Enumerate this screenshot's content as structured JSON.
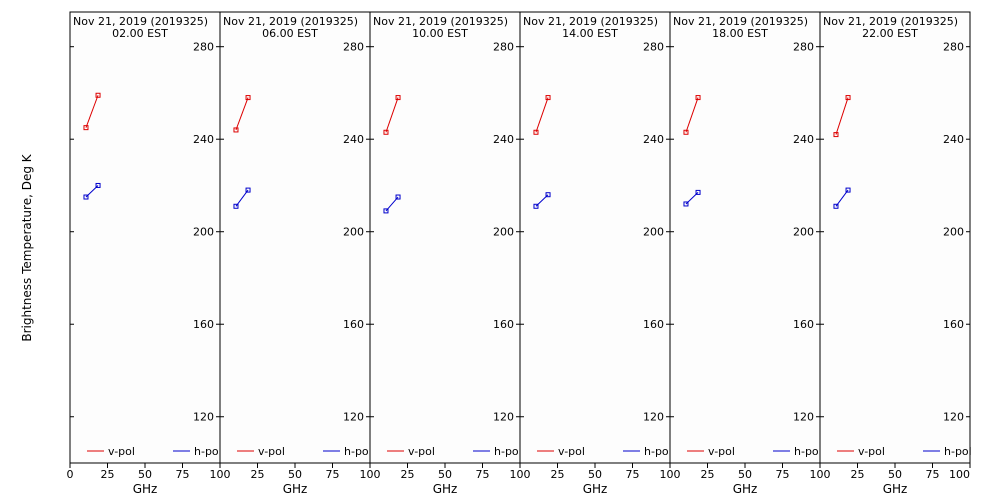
{
  "ylabel": "Brightness Temperature, Deg K",
  "chart_data": [
    {
      "type": "line",
      "title": "Nov 21, 2019 (2019325)",
      "subtitle": "02.00 EST",
      "xlabel": "GHz",
      "xlim": [
        0,
        100
      ],
      "ylim": [
        100,
        295
      ],
      "x_ticks": [
        0,
        25,
        50,
        75,
        100
      ],
      "y_ticks": [
        120,
        160,
        200,
        240,
        280
      ],
      "legend": "bottom",
      "series": [
        {
          "name": "v-pol",
          "color": "#dd0000",
          "x": [
            10.65,
            18.7
          ],
          "y": [
            245,
            259
          ]
        },
        {
          "name": "h-pol",
          "color": "#0000cc",
          "x": [
            10.65,
            18.7
          ],
          "y": [
            215,
            220
          ]
        }
      ]
    },
    {
      "type": "line",
      "title": "Nov 21, 2019 (2019325)",
      "subtitle": "06.00 EST",
      "xlabel": "GHz",
      "xlim": [
        0,
        100
      ],
      "ylim": [
        100,
        295
      ],
      "x_ticks": [
        0,
        25,
        50,
        75,
        100
      ],
      "y_ticks": [
        120,
        160,
        200,
        240,
        280
      ],
      "legend": "bottom",
      "series": [
        {
          "name": "v-pol",
          "color": "#dd0000",
          "x": [
            10.65,
            18.7
          ],
          "y": [
            244,
            258
          ]
        },
        {
          "name": "h-pol",
          "color": "#0000cc",
          "x": [
            10.65,
            18.7
          ],
          "y": [
            211,
            218
          ]
        }
      ]
    },
    {
      "type": "line",
      "title": "Nov 21, 2019 (2019325)",
      "subtitle": "10.00 EST",
      "xlabel": "GHz",
      "xlim": [
        0,
        100
      ],
      "ylim": [
        100,
        295
      ],
      "x_ticks": [
        0,
        25,
        50,
        75,
        100
      ],
      "y_ticks": [
        120,
        160,
        200,
        240,
        280
      ],
      "legend": "bottom",
      "series": [
        {
          "name": "v-pol",
          "color": "#dd0000",
          "x": [
            10.65,
            18.7
          ],
          "y": [
            243,
            258
          ]
        },
        {
          "name": "h-pol",
          "color": "#0000cc",
          "x": [
            10.65,
            18.7
          ],
          "y": [
            209,
            215
          ]
        }
      ]
    },
    {
      "type": "line",
      "title": "Nov 21, 2019 (2019325)",
      "subtitle": "14.00 EST",
      "xlabel": "GHz",
      "xlim": [
        0,
        100
      ],
      "ylim": [
        100,
        295
      ],
      "x_ticks": [
        0,
        25,
        50,
        75,
        100
      ],
      "y_ticks": [
        120,
        160,
        200,
        240,
        280
      ],
      "legend": "bottom",
      "series": [
        {
          "name": "v-pol",
          "color": "#dd0000",
          "x": [
            10.65,
            18.7
          ],
          "y": [
            243,
            258
          ]
        },
        {
          "name": "h-pol",
          "color": "#0000cc",
          "x": [
            10.65,
            18.7
          ],
          "y": [
            211,
            216
          ]
        }
      ]
    },
    {
      "type": "line",
      "title": "Nov 21, 2019 (2019325)",
      "subtitle": "18.00 EST",
      "xlabel": "GHz",
      "xlim": [
        0,
        100
      ],
      "ylim": [
        100,
        295
      ],
      "x_ticks": [
        0,
        25,
        50,
        75,
        100
      ],
      "y_ticks": [
        120,
        160,
        200,
        240,
        280
      ],
      "legend": "bottom",
      "series": [
        {
          "name": "v-pol",
          "color": "#dd0000",
          "x": [
            10.65,
            18.7
          ],
          "y": [
            243,
            258
          ]
        },
        {
          "name": "h-pol",
          "color": "#0000cc",
          "x": [
            10.65,
            18.7
          ],
          "y": [
            212,
            217
          ]
        }
      ]
    },
    {
      "type": "line",
      "title": "Nov 21, 2019 (2019325)",
      "subtitle": "22.00 EST",
      "xlabel": "GHz",
      "xlim": [
        0,
        100
      ],
      "ylim": [
        100,
        295
      ],
      "x_ticks": [
        0,
        25,
        50,
        75,
        100
      ],
      "y_ticks": [
        120,
        160,
        200,
        240,
        280
      ],
      "legend": "bottom",
      "series": [
        {
          "name": "v-pol",
          "color": "#dd0000",
          "x": [
            10.65,
            18.7
          ],
          "y": [
            242,
            258
          ]
        },
        {
          "name": "h-pol",
          "color": "#0000cc",
          "x": [
            10.65,
            18.7
          ],
          "y": [
            211,
            218
          ]
        }
      ]
    }
  ]
}
